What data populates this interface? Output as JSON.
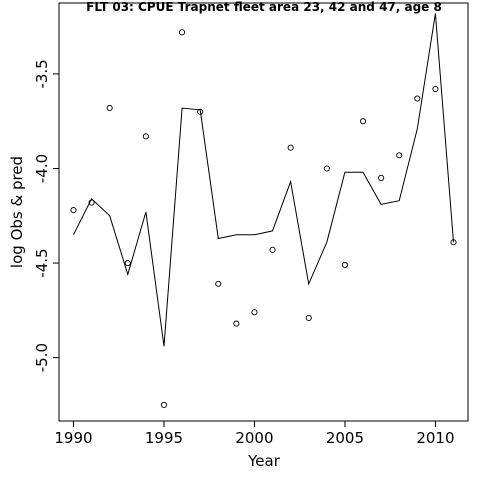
{
  "chart_data": {
    "type": "line",
    "title": "FLT 03: CPUE Trapnet fleet area 23, 42 and 47, age 8",
    "xlabel": "Year",
    "ylabel": "log Obs & pred",
    "xlim": [
      1989.2,
      2011.8
    ],
    "ylim": [
      -5.335,
      -3.125
    ],
    "x_ticks": [
      1990,
      1995,
      2000,
      2005,
      2010
    ],
    "y_ticks": [
      -5.0,
      -4.5,
      -4.0,
      -3.5
    ],
    "x_tick_labels": [
      "1990",
      "1995",
      "2000",
      "2005",
      "2010"
    ],
    "y_tick_labels": [
      "-5.0",
      "-4.5",
      "-4.0",
      "-3.5"
    ],
    "grid": false,
    "legend": "none",
    "series": [
      {
        "style": "points",
        "marker": "open-circle",
        "x": [
          1990,
          1991,
          1992,
          1993,
          1994,
          1995,
          1996,
          1997,
          1998,
          1999,
          2000,
          2001,
          2002,
          2003,
          2004,
          2005,
          2006,
          2007,
          2008,
          2009,
          2010,
          2011
        ],
        "values": [
          -4.22,
          -4.18,
          -3.68,
          -4.5,
          -3.83,
          -5.25,
          -3.28,
          -3.7,
          -4.61,
          -4.82,
          -4.76,
          -4.43,
          -3.89,
          -4.79,
          -4.0,
          -4.51,
          -3.75,
          -4.05,
          -3.93,
          -3.63,
          -3.58,
          -4.39
        ]
      },
      {
        "style": "line",
        "x": [
          1990,
          1991,
          1992,
          1993,
          1994,
          1995,
          1996,
          1997,
          1998,
          1999,
          2000,
          2001,
          2002,
          2003,
          2004,
          2005,
          2006,
          2007,
          2008,
          2009,
          2010,
          2011
        ],
        "values": [
          -4.35,
          -4.16,
          -4.25,
          -4.56,
          -4.23,
          -4.94,
          -3.68,
          -3.69,
          -4.37,
          -4.35,
          -4.35,
          -4.33,
          -4.07,
          -4.61,
          -4.39,
          -4.02,
          -4.02,
          -4.19,
          -4.17,
          -3.79,
          -3.18,
          -4.39
        ]
      }
    ]
  }
}
